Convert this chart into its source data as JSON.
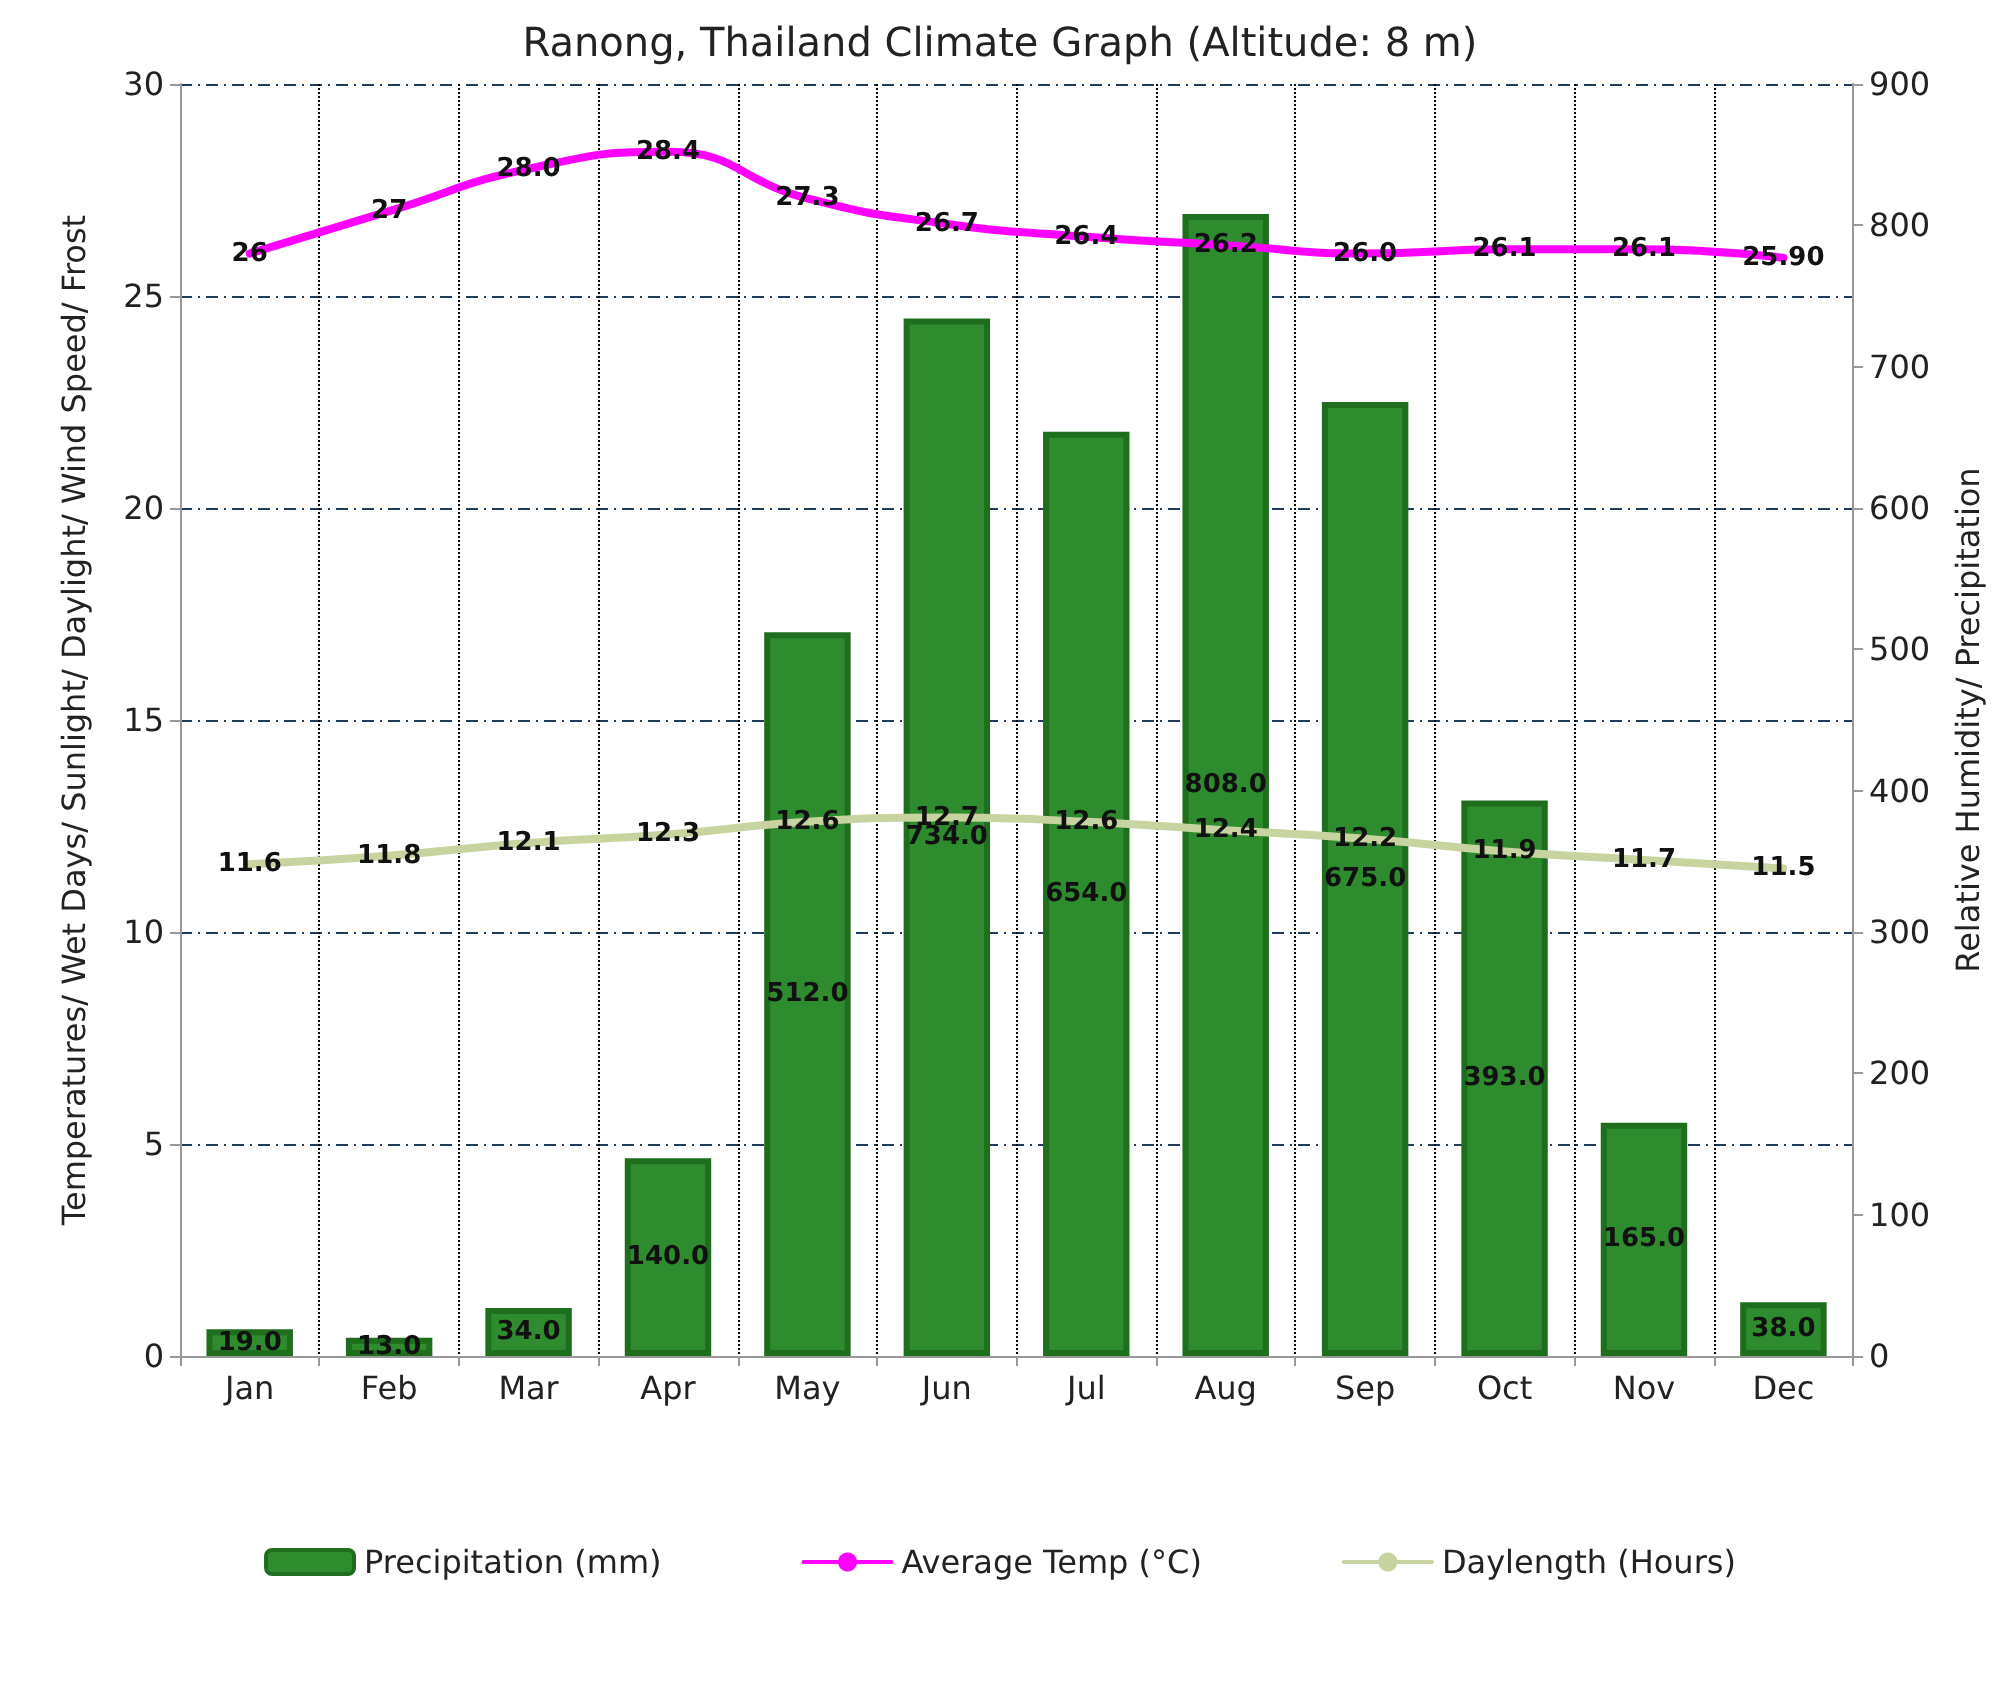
{
  "chart_data": {
    "type": "bar",
    "title": "Ranong, Thailand Climate Graph (Altitude: 8 m)",
    "ylabel": "Temperatures/ Wet Days/ Sunlight/ Daylight/ Wind Speed/ Frost",
    "y2label": "Relative Humidity/ Precipitation",
    "categories": [
      "Jan",
      "Feb",
      "Mar",
      "Apr",
      "May",
      "Jun",
      "Jul",
      "Aug",
      "Sep",
      "Oct",
      "Nov",
      "Dec"
    ],
    "series": [
      {
        "name": "Precipitation (mm)",
        "axis": "y2",
        "color": "#2e8b2e",
        "values": [
          19,
          13,
          34,
          140,
          512,
          734,
          654,
          808,
          675,
          393,
          165,
          38
        ],
        "value_labels": [
          "19.0",
          "13.0",
          "34.0",
          "140.0",
          "512.0",
          "734.0",
          "654.0",
          "808.0",
          "675.0",
          "393.0",
          "165.0",
          "38.0"
        ]
      },
      {
        "name": "Average Temp (°C)",
        "type": "line",
        "color": "#ff00ff",
        "values": [
          26,
          27,
          28,
          28.4,
          27.3,
          26.7,
          26.4,
          26.2,
          26,
          26.1,
          26.1,
          25.9
        ],
        "value_labels": [
          "26",
          "27",
          "28.0",
          "28.4",
          "27.3",
          "26.7",
          "26.4",
          "26.2",
          "26.0",
          "26.1",
          "26.1",
          "25.90"
        ]
      },
      {
        "name": "Daylength (Hours)",
        "type": "line",
        "color": "#c8d4a0",
        "values": [
          11.6,
          11.8,
          12.1,
          12.3,
          12.6,
          12.7,
          12.6,
          12.4,
          12.2,
          11.9,
          11.7,
          11.5
        ],
        "value_labels": [
          "11.6",
          "11.8",
          "12.1",
          "12.3",
          "12.6",
          "12.7",
          "12.6",
          "12.4",
          "12.2",
          "11.9",
          "11.7",
          "11.5"
        ]
      }
    ],
    "ylim": [
      0,
      30
    ],
    "yticks": [
      0,
      5,
      10,
      15,
      20,
      25,
      30
    ],
    "y2lim": [
      0,
      900
    ],
    "y2ticks": [
      0,
      100,
      200,
      300,
      400,
      500,
      600,
      700,
      800,
      900
    ],
    "grid": true,
    "legend": "bottom",
    "marker": "none",
    "line_style": "solid"
  }
}
